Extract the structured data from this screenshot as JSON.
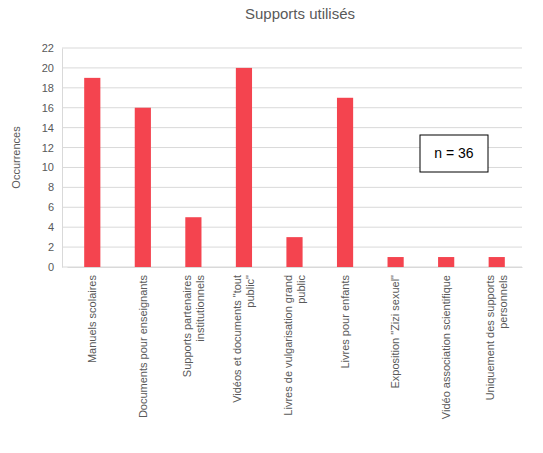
{
  "chart_data": {
    "type": "bar",
    "title": "Supports utilisés",
    "y_label": "Occurrences",
    "categories": [
      "Manuels scolaires",
      "Documents pour enseignants",
      "Supports partenaires\ninstitutionnels",
      "Vidéos et documents \"tout\npublic\"",
      "Livres de vulgarisation grand\npublic",
      "Livres pour enfants",
      "Exposition \"Zizi sexuel\"",
      "Vidéo association scientifique",
      "Uniquement des supports\npersonnels"
    ],
    "values": [
      19,
      16,
      5,
      20,
      3,
      17,
      1,
      1,
      1
    ],
    "color": "#f4444f",
    "ylim": [
      0,
      22
    ],
    "yticks": [
      0,
      2,
      4,
      6,
      8,
      10,
      12,
      14,
      16,
      18,
      20,
      22
    ],
    "grid": true,
    "annotation": "n = 36"
  }
}
